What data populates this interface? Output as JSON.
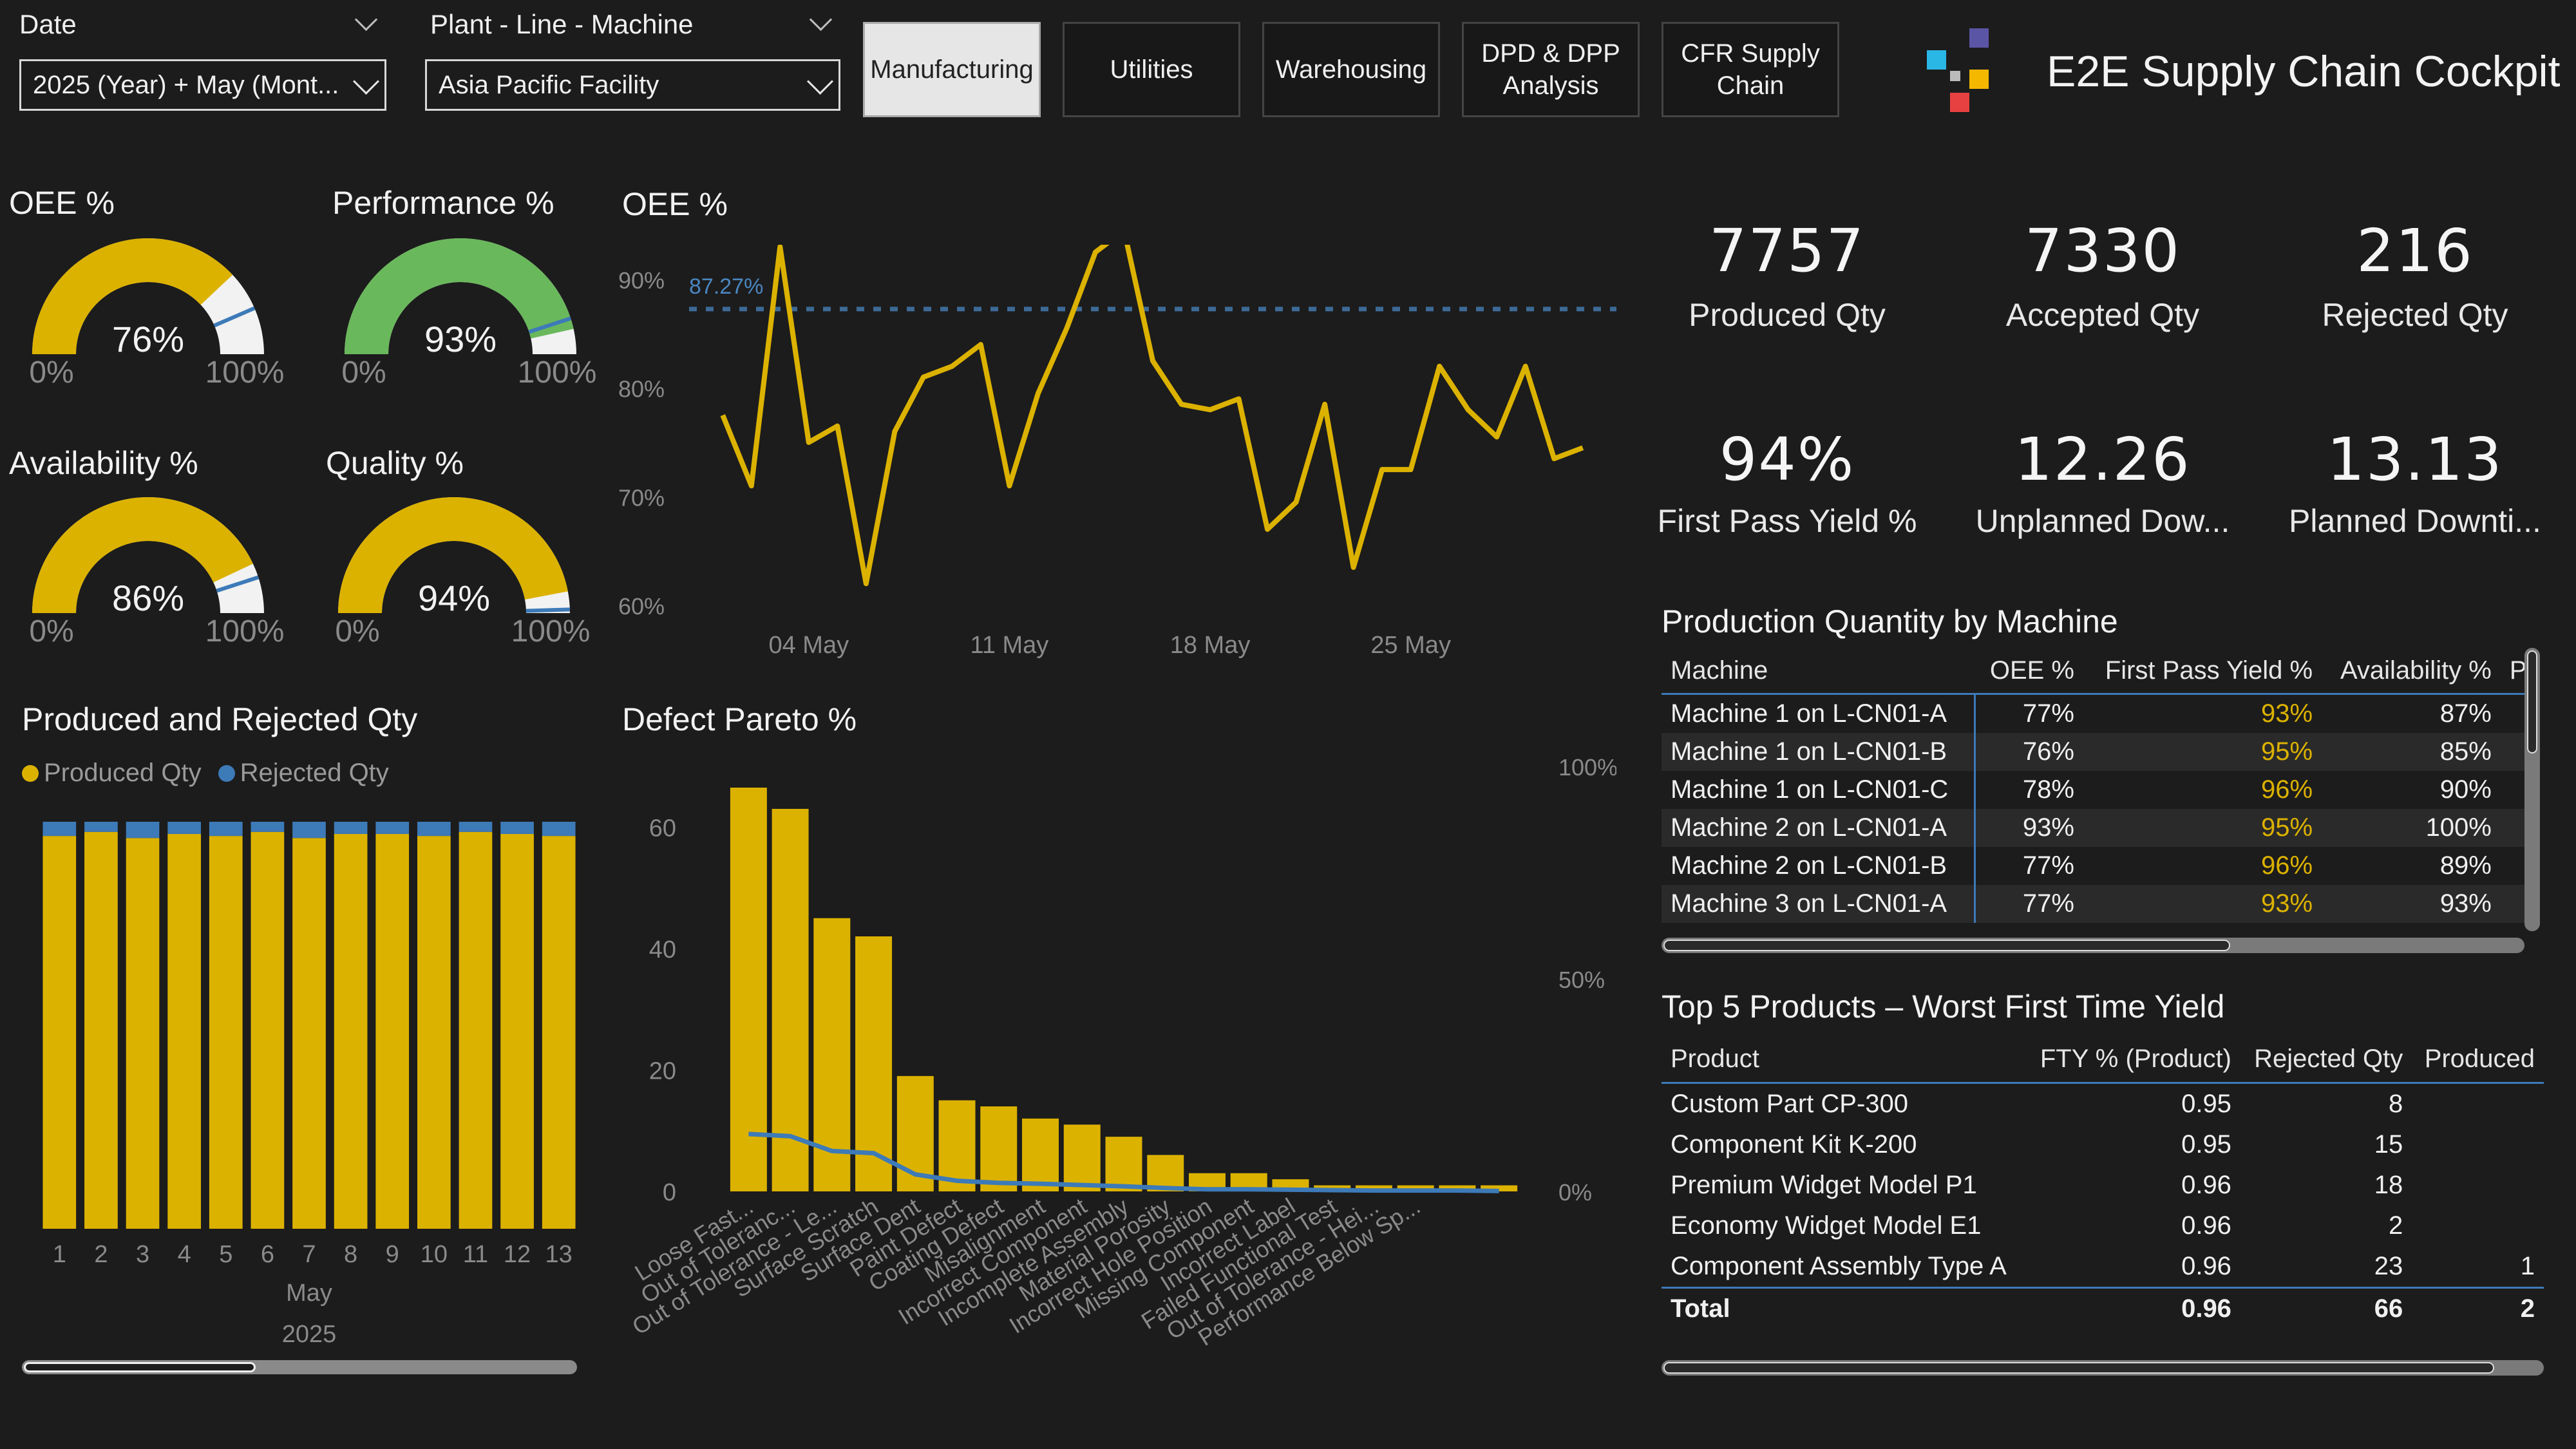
{
  "filters": {
    "date_label": "Date",
    "date_value": "2025 (Year) + May (Mont...",
    "plant_label": "Plant - Line - Machine",
    "plant_value": "Asia Pacific Facility"
  },
  "nav": [
    "Manufacturing",
    "Utilities",
    "Warehousing",
    "DPD & DPP Analysis",
    "CFR Supply Chain"
  ],
  "app_title": "E2E Supply Chain Cockpit",
  "colors": {
    "accent": "#dcb200",
    "blue": "#3d7ab8",
    "green": "#6ab85c",
    "bg": "#1c1c1c"
  },
  "gauges": [
    {
      "title": "OEE %",
      "value": 0.76,
      "label": "76%",
      "target": 0.87,
      "min": "0%",
      "max": "100%",
      "color": "#dcb200"
    },
    {
      "title": "Performance %",
      "value": 0.93,
      "label": "93%",
      "target": 0.9,
      "min": "0%",
      "max": "100%",
      "color": "#6ab85c"
    },
    {
      "title": "Availability %",
      "value": 0.86,
      "label": "86%",
      "target": 0.9,
      "min": "0%",
      "max": "100%",
      "color": "#dcb200"
    },
    {
      "title": "Quality %",
      "value": 0.94,
      "label": "94%",
      "target": 0.99,
      "min": "0%",
      "max": "100%",
      "color": "#dcb200"
    }
  ],
  "kpis": [
    {
      "value": "7757",
      "label": "Produced Qty"
    },
    {
      "value": "7330",
      "label": "Accepted Qty"
    },
    {
      "value": "216",
      "label": "Rejected Qty"
    },
    {
      "value": "94%",
      "label": "First Pass Yield %"
    },
    {
      "value": "12.26",
      "label": "Unplanned Dow..."
    },
    {
      "value": "13.13",
      "label": "Planned Downti..."
    }
  ],
  "machine_table": {
    "title": "Production Quantity by Machine",
    "columns": [
      "Machine",
      "OEE %",
      "First Pass Yield %",
      "Availability %",
      "Perf"
    ],
    "rows": [
      [
        "Machine 1 on L-CN01-A",
        "77%",
        "93%",
        "87%"
      ],
      [
        "Machine 1 on L-CN01-B",
        "76%",
        "95%",
        "85%"
      ],
      [
        "Machine 1 on L-CN01-C",
        "78%",
        "96%",
        "90%"
      ],
      [
        "Machine 2 on L-CN01-A",
        "93%",
        "95%",
        "100%"
      ],
      [
        "Machine 2 on L-CN01-B",
        "77%",
        "96%",
        "89%"
      ],
      [
        "Machine 3 on L-CN01-A",
        "77%",
        "93%",
        "93%"
      ]
    ]
  },
  "product_table": {
    "title": "Top 5 Products – Worst First Time Yield",
    "columns": [
      "Product",
      "FTY % (Product)",
      "Rejected Qty",
      "Produced"
    ],
    "rows": [
      [
        "Custom Part CP-300",
        "0.95",
        "8",
        ""
      ],
      [
        "Component Kit K-200",
        "0.95",
        "15",
        ""
      ],
      [
        "Premium Widget Model P1",
        "0.96",
        "18",
        ""
      ],
      [
        "Economy Widget Model E1",
        "0.96",
        "2",
        ""
      ],
      [
        "Component Assembly Type A",
        "0.96",
        "23",
        "1"
      ]
    ],
    "total": [
      "Total",
      "0.96",
      "66",
      "2"
    ]
  },
  "chart_data": [
    {
      "type": "line",
      "title": "OEE %",
      "x_ticks": [
        "04 May",
        "11 May",
        "18 May",
        "25 May"
      ],
      "y_ticks": [
        "60%",
        "70%",
        "80%",
        "90%"
      ],
      "ylim": [
        60,
        92
      ],
      "target": 87.27,
      "target_label": "87.27%",
      "x": [
        1,
        2,
        3,
        4,
        5,
        6,
        7,
        8,
        9,
        10,
        11,
        12,
        13,
        14,
        15,
        16,
        17,
        18,
        19,
        20,
        21,
        22,
        23,
        24,
        25,
        26,
        27,
        28,
        29,
        30,
        31
      ],
      "values": [
        77.5,
        71,
        93,
        75,
        76.5,
        62,
        76,
        81,
        82,
        84,
        71,
        79.5,
        85.5,
        92.5,
        94.5,
        82.5,
        78.5,
        78,
        79,
        67,
        69.5,
        78.5,
        63.5,
        72.5,
        72.5,
        82,
        78,
        75.5,
        82,
        73.5,
        74.5
      ]
    },
    {
      "type": "bar",
      "title": "Produced and Rejected Qty",
      "legend": [
        "Produced Qty",
        "Rejected Qty"
      ],
      "categories": [
        "1",
        "2",
        "3",
        "4",
        "5",
        "6",
        "7",
        "8",
        "9",
        "10",
        "11",
        "12",
        "13"
      ],
      "x_group_labels": [
        "May",
        "2025"
      ],
      "series": [
        {
          "name": "Produced Qty",
          "values": [
            96.5,
            97.5,
            96,
            97,
            96.5,
            97.5,
            96,
            97,
            97,
            96.5,
            97.5,
            97,
            96.5
          ]
        },
        {
          "name": "Rejected Qty",
          "values": [
            3.5,
            2.5,
            4,
            3,
            3.5,
            2.5,
            4,
            3,
            3,
            3.5,
            2.5,
            3,
            3.5
          ]
        }
      ]
    },
    {
      "type": "bar",
      "title": "Defect Pareto %",
      "y_ticks_left": [
        "0",
        "20",
        "40",
        "60"
      ],
      "y_ticks_right": [
        "0%",
        "50%",
        "100%"
      ],
      "ylim": [
        0,
        70
      ],
      "categories": [
        "Loose Fast...",
        "Out of Toleranc...",
        "Out of Tolerance - Le...",
        "Surface Scratch",
        "Surface Dent",
        "Paint Defect",
        "Coating Defect",
        "Misalignment",
        "Incorrect Component",
        "Incomplete Assembly",
        "Material Porosity",
        "Incorrect Hole Position",
        "Missing Component",
        "Incorrect Label",
        "Failed Functional Test",
        "Out of Tolerance - Hei...",
        "Performance Below Sp...",
        "",
        ""
      ],
      "values": [
        66.5,
        63,
        45,
        42,
        19,
        15,
        14,
        12,
        11,
        9,
        6,
        3,
        3,
        2,
        1,
        1,
        1,
        1,
        1
      ],
      "line_pct": [
        13.5,
        13,
        9.5,
        9,
        4,
        2.5,
        2,
        1.8,
        1.5,
        1.2,
        0.8,
        0.5,
        0.5,
        0.4,
        0.3,
        0.2,
        0.2,
        0.2,
        0.1
      ]
    }
  ]
}
